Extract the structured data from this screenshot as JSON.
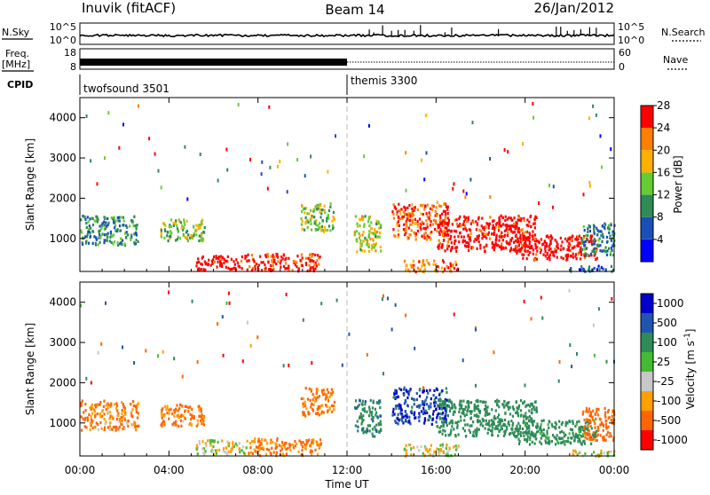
{
  "header": {
    "station": "Inuvik (fitACF)",
    "beam": "Beam 14",
    "date": "26/Jan/2012"
  },
  "noise_panel": {
    "left_label": "N.Sky",
    "left_ticks": [
      "10^5",
      "10^0"
    ],
    "right_label": "N.Search",
    "right_ticks": [
      "10^5",
      "10^0"
    ]
  },
  "freq_panel": {
    "label_line1": "Freq.",
    "label_line2": "[MHz]",
    "left_ticks": [
      "18",
      "8"
    ],
    "right_label": "Nave",
    "right_ticks": [
      "60",
      "0"
    ]
  },
  "cpid_panel": {
    "label": "CPID",
    "programs": [
      {
        "name": "twofsound 3501",
        "start_hour": 0
      },
      {
        "name": "themis 3300",
        "start_hour": 12
      }
    ]
  },
  "time_axis": {
    "label": "Time UT",
    "ticks": [
      "00:00",
      "04:00",
      "08:00",
      "12:00",
      "16:00",
      "20:00",
      "00:00"
    ],
    "range_hours": [
      0,
      24
    ]
  },
  "chart_data": [
    {
      "type": "heatmap",
      "name": "power",
      "ylabel": "Slant Range [km]",
      "yticks": [
        "1000",
        "2000",
        "3000",
        "4000"
      ],
      "ylim": [
        180,
        4500
      ],
      "colorbar_label": "Power [dB]",
      "colorbar_ticks": [
        "4",
        "8",
        "12",
        "16",
        "20",
        "24",
        "28"
      ],
      "colorbar_colors": [
        "#0000ff",
        "#1b4fb8",
        "#2e8b57",
        "#66cc33",
        "#ffb000",
        "#ff7f00",
        "#ff0000"
      ],
      "regions": [
        {
          "t0": 0.0,
          "t1": 2.6,
          "r0": 850,
          "r1": 1600,
          "v": 10
        },
        {
          "t0": 3.6,
          "t1": 5.6,
          "r0": 950,
          "r1": 1500,
          "v": 14
        },
        {
          "t0": 5.2,
          "t1": 7.5,
          "r0": 250,
          "r1": 600,
          "v": 27
        },
        {
          "t0": 7.5,
          "t1": 10.8,
          "r0": 220,
          "r1": 650,
          "v": 26
        },
        {
          "t0": 9.9,
          "t1": 11.4,
          "r0": 1200,
          "r1": 1900,
          "v": 14
        },
        {
          "t0": 12.3,
          "t1": 13.5,
          "r0": 700,
          "r1": 1600,
          "v": 16
        },
        {
          "t0": 14.0,
          "t1": 16.5,
          "r0": 1000,
          "r1": 1900,
          "v": 24
        },
        {
          "t0": 16.0,
          "t1": 20.5,
          "r0": 700,
          "r1": 1600,
          "v": 28
        },
        {
          "t0": 19.5,
          "t1": 23.2,
          "r0": 500,
          "r1": 1100,
          "v": 28
        },
        {
          "t0": 22.5,
          "t1": 24.0,
          "r0": 600,
          "r1": 1400,
          "v": 9
        },
        {
          "t0": 14.5,
          "t1": 17.0,
          "r0": 200,
          "r1": 500,
          "v": 22
        },
        {
          "t0": 22.0,
          "t1": 24.0,
          "r0": 200,
          "r1": 350,
          "v": 6
        }
      ]
    },
    {
      "type": "heatmap",
      "name": "velocity",
      "ylabel": "Slant Range [km]",
      "yticks": [
        "1000",
        "2000",
        "3000",
        "4000"
      ],
      "ylim": [
        180,
        4500
      ],
      "colorbar_label": "Velocity [m s^-1]",
      "colorbar_ticks": [
        "1000",
        "500",
        "100",
        "25",
        "-25",
        "-100",
        "-500",
        "-1000"
      ],
      "colorbar_colors": [
        "#0000cc",
        "#1f55b0",
        "#2e8b57",
        "#44bb33",
        "#c8c8c8",
        "#ffa000",
        "#ff6600",
        "#ff0000"
      ],
      "regions": [
        {
          "t0": 0.0,
          "t1": 2.6,
          "r0": 850,
          "r1": 1600,
          "v": -110
        },
        {
          "t0": 3.6,
          "t1": 5.6,
          "r0": 950,
          "r1": 1500,
          "v": -120
        },
        {
          "t0": 5.2,
          "t1": 7.5,
          "r0": 250,
          "r1": 600,
          "v": 0
        },
        {
          "t0": 7.5,
          "t1": 10.8,
          "r0": 220,
          "r1": 650,
          "v": -130
        },
        {
          "t0": 9.9,
          "t1": 11.4,
          "r0": 1200,
          "r1": 1900,
          "v": -150
        },
        {
          "t0": 12.3,
          "t1": 13.5,
          "r0": 700,
          "r1": 1600,
          "v": 400
        },
        {
          "t0": 14.0,
          "t1": 16.5,
          "r0": 1000,
          "r1": 1900,
          "v": 900
        },
        {
          "t0": 16.0,
          "t1": 20.5,
          "r0": 700,
          "r1": 1600,
          "v": 300
        },
        {
          "t0": 19.5,
          "t1": 23.2,
          "r0": 500,
          "r1": 1100,
          "v": 200
        },
        {
          "t0": 22.5,
          "t1": 24.0,
          "r0": 600,
          "r1": 1400,
          "v": -300
        },
        {
          "t0": 14.5,
          "t1": 17.0,
          "r0": 200,
          "r1": 500,
          "v": 0
        },
        {
          "t0": 22.0,
          "t1": 24.0,
          "r0": 200,
          "r1": 350,
          "v": 0
        }
      ]
    }
  ]
}
